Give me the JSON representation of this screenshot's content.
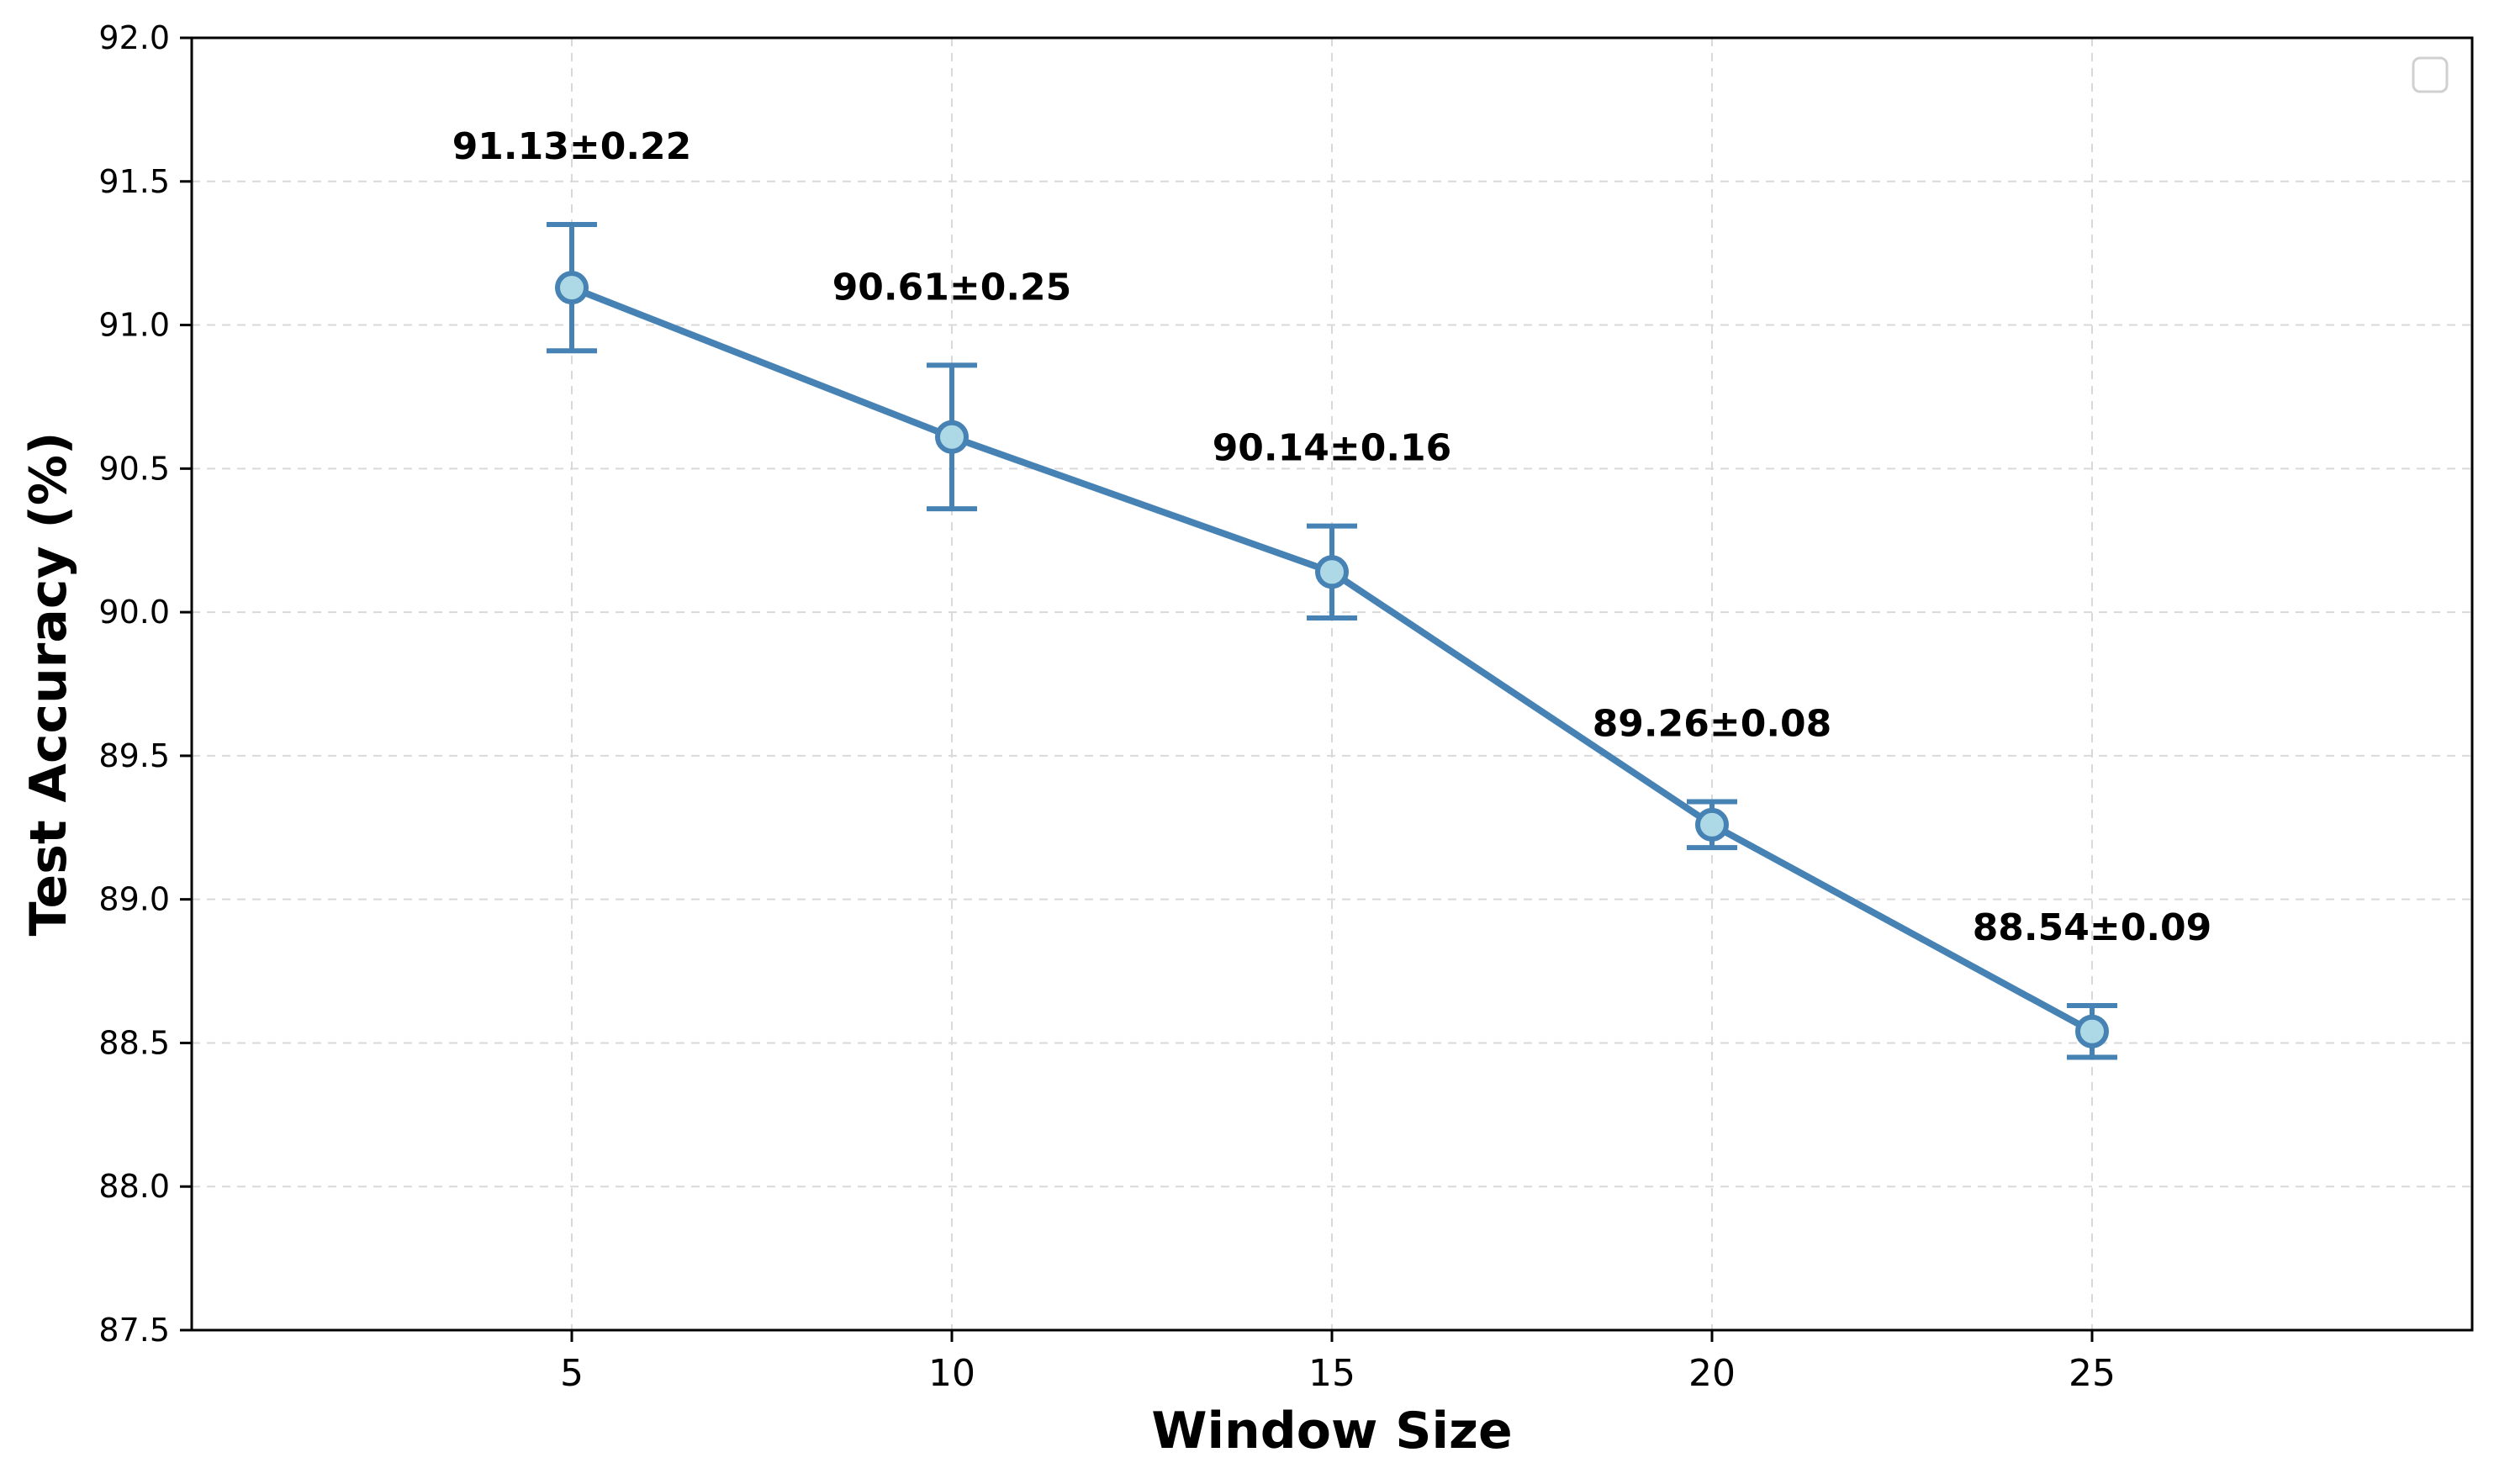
{
  "chart_data": {
    "type": "line",
    "xlabel": "Window Size",
    "ylabel": "Test Accuracy (%)",
    "xlim": [
      0,
      30
    ],
    "ylim": [
      87.5,
      92.0
    ],
    "x_ticks": [
      5,
      10,
      15,
      20,
      25
    ],
    "x_tick_labels": [
      "5",
      "10",
      "15",
      "20",
      "25"
    ],
    "y_ticks": [
      87.5,
      88.0,
      88.5,
      89.0,
      89.5,
      90.0,
      90.5,
      91.0,
      91.5,
      92.0
    ],
    "y_tick_labels": [
      "87.5",
      "88.0",
      "88.5",
      "89.0",
      "89.5",
      "90.0",
      "90.5",
      "91.0",
      "91.5",
      "92.0"
    ],
    "grid": true,
    "legend": "top-right (empty)",
    "series": [
      {
        "x": [
          5,
          10,
          15,
          20,
          25
        ],
        "values": [
          91.13,
          90.61,
          90.14,
          89.26,
          88.54
        ],
        "errors": [
          0.22,
          0.25,
          0.16,
          0.08,
          0.09
        ],
        "point_labels": [
          "91.13±0.22",
          "90.61±0.25",
          "90.14±0.16",
          "89.26±0.08",
          "88.54±0.09"
        ]
      }
    ],
    "colors": {
      "line": "#4682b4",
      "marker_fill": "#add8e6",
      "grid": "#d9d9d9",
      "axis": "#000000"
    }
  }
}
